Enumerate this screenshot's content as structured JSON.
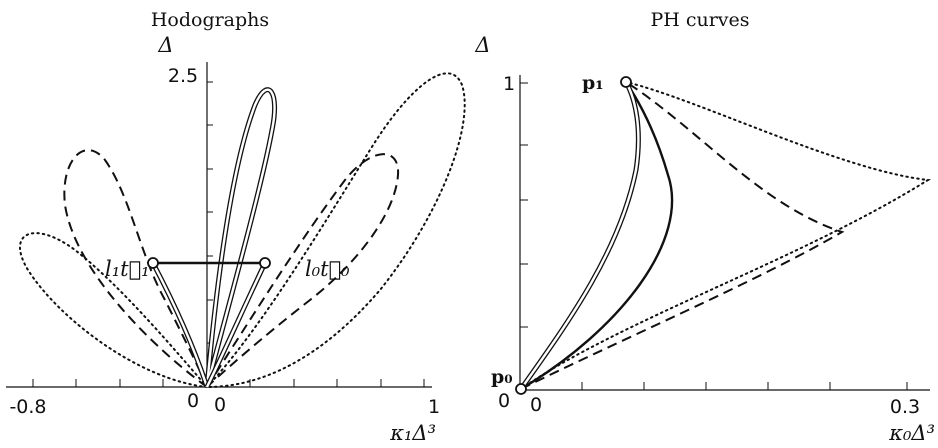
{
  "chart_data": [
    {
      "type": "line",
      "title": "Hodographs",
      "xlabel": "κ₁Δ³",
      "ylabel": "Δ",
      "xlim": [
        -0.8,
        1
      ],
      "ylim": [
        0,
        2.5
      ],
      "x_tick_labels": [
        "-0.8",
        "0",
        "0",
        "1"
      ],
      "y_tick_labels": [
        "2.5"
      ],
      "annotations": [
        "l₁t⃗₁",
        "l₀t⃗₀"
      ],
      "series": [
        {
          "style": "double",
          "points": [
            [
              0,
              0
            ],
            [
              0.05,
              0.8
            ],
            [
              0.15,
              1.7
            ],
            [
              0.25,
              2.2
            ],
            [
              0.3,
              2.1
            ],
            [
              0.27,
              1.6
            ],
            [
              0.15,
              0.9
            ],
            [
              0,
              0
            ]
          ]
        },
        {
          "style": "double",
          "points": [
            [
              0,
              0
            ],
            [
              -0.08,
              0.5
            ],
            [
              -0.2,
              0.9
            ],
            [
              -0.24,
              0.95
            ]
          ]
        },
        {
          "style": "dashed",
          "points": [
            [
              0,
              0
            ],
            [
              -0.3,
              0.3
            ],
            [
              -0.55,
              0.9
            ],
            [
              -0.7,
              1.5
            ],
            [
              -0.65,
              1.9
            ],
            [
              -0.4,
              1.4
            ],
            [
              -0.15,
              0.6
            ],
            [
              0,
              0
            ]
          ]
        },
        {
          "style": "dashed",
          "points": [
            [
              0,
              0
            ],
            [
              0.2,
              0.6
            ],
            [
              0.45,
              1.2
            ],
            [
              0.7,
              1.7
            ],
            [
              0.8,
              1.8
            ],
            [
              0.7,
              1.3
            ],
            [
              0.4,
              0.6
            ],
            [
              0.15,
              0.15
            ],
            [
              0,
              0
            ]
          ]
        },
        {
          "style": "dotted",
          "points": [
            [
              0,
              0
            ],
            [
              -0.3,
              0.15
            ],
            [
              -0.6,
              0.6
            ],
            [
              -0.85,
              1.0
            ],
            [
              -0.9,
              1.2
            ],
            [
              -0.6,
              0.9
            ],
            [
              -0.25,
              0.3
            ],
            [
              0,
              0
            ]
          ]
        },
        {
          "style": "dotted",
          "points": [
            [
              0,
              0
            ],
            [
              0.3,
              0.6
            ],
            [
              0.65,
              1.6
            ],
            [
              0.95,
              2.45
            ],
            [
              1.05,
              2.2
            ],
            [
              0.85,
              1.3
            ],
            [
              0.45,
              0.35
            ],
            [
              0,
              0
            ]
          ]
        },
        {
          "style": "solid",
          "points": [
            [
              -0.24,
              0.95
            ],
            [
              0.24,
              0.95
            ]
          ]
        }
      ]
    },
    {
      "type": "line",
      "title": "PH curves",
      "xlabel": "κ₀Δ³",
      "ylabel": "Δ",
      "xlim": [
        0,
        0.3
      ],
      "ylim": [
        0,
        1
      ],
      "x_tick_labels": [
        "0",
        "0.3"
      ],
      "y_tick_labels": [
        "0",
        "1"
      ],
      "annotations": [
        "p₀",
        "p₁"
      ],
      "series": [
        {
          "style": "double",
          "points": [
            [
              0,
              0
            ],
            [
              0.03,
              0.25
            ],
            [
              0.075,
              0.6
            ],
            [
              0.1,
              1.0
            ]
          ]
        },
        {
          "style": "solid",
          "points": [
            [
              0,
              0
            ],
            [
              0.07,
              0.2
            ],
            [
              0.12,
              0.6
            ],
            [
              0.1,
              1.0
            ]
          ]
        },
        {
          "style": "dashed",
          "points": [
            [
              0,
              0
            ],
            [
              0.17,
              0.3
            ],
            [
              0.24,
              0.48
            ],
            [
              0.18,
              0.62
            ],
            [
              0.1,
              1.0
            ]
          ]
        },
        {
          "style": "dotted",
          "points": [
            [
              0,
              0
            ],
            [
              0.2,
              0.5
            ],
            [
              0.3,
              0.7
            ],
            [
              0.18,
              0.9
            ],
            [
              0.1,
              1.0
            ]
          ]
        }
      ]
    }
  ]
}
